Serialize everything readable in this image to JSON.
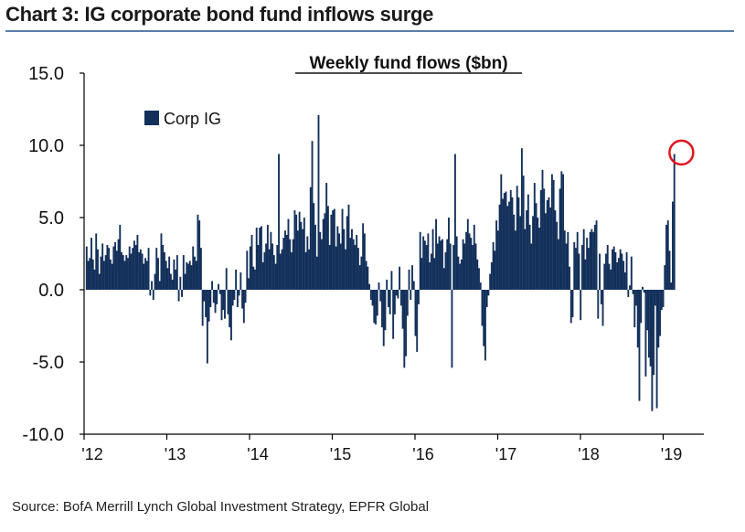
{
  "header": {
    "title": "Chart 3: IG corporate bond fund inflows surge"
  },
  "footer": {
    "source": "Source:  BofA Merrill Lynch Global Investment Strategy, EPFR Global"
  },
  "colors": {
    "bar": "#13305a",
    "highlight": "#e0141c",
    "axis": "#000000",
    "title_rule": "#5a7fa8"
  },
  "chart_data": {
    "type": "bar",
    "title": "Weekly fund flows ($bn)",
    "xlabel": "",
    "ylabel": "",
    "ylim": [
      -10,
      15
    ],
    "grid": false,
    "legend": [
      "Corp IG"
    ],
    "legend_position": "top-left",
    "y_ticks": [
      15,
      10,
      5,
      0,
      -5,
      -10
    ],
    "y_tick_labels": [
      "15.0",
      "10.0",
      "5.0",
      "0.0",
      "-5.0",
      "-10.0"
    ],
    "x_ticks": [
      {
        "label": "'12",
        "t": 0.0
      },
      {
        "label": "'13",
        "t": 1.0
      },
      {
        "label": "'14",
        "t": 2.0
      },
      {
        "label": "'15",
        "t": 3.0
      },
      {
        "label": "'16",
        "t": 4.0
      },
      {
        "label": "'17",
        "t": 5.0
      },
      {
        "label": "'18",
        "t": 6.0
      },
      {
        "label": "'19",
        "t": 7.0
      }
    ],
    "x_range": [
      0,
      7.45
    ],
    "annotation": {
      "type": "circle",
      "label": "latest weekly inflow",
      "t": 7.22,
      "value": 9.5
    },
    "series": [
      {
        "name": "Corp IG",
        "t_start": 0.03,
        "t_step": 0.0192,
        "values": [
          3.0,
          2.0,
          2.2,
          3.6,
          2.1,
          1.4,
          3.9,
          2.8,
          1.1,
          2.3,
          3.2,
          2.0,
          2.4,
          3.1,
          2.9,
          2.1,
          1.8,
          3.0,
          3.3,
          2.7,
          3.5,
          4.5,
          2.6,
          2.4,
          2.0,
          2.4,
          2.2,
          3.0,
          2.5,
          2.9,
          3.4,
          3.1,
          3.8,
          2.6,
          2.8,
          2.5,
          1.8,
          2.2,
          2.0,
          2.9,
          -0.4,
          0.6,
          -0.7,
          1.1,
          2.9,
          2.2,
          0.6,
          3.9,
          3.1,
          2.6,
          2.0,
          1.5,
          2.3,
          1.1,
          0.7,
          2.1,
          1.4,
          2.4,
          -0.8,
          0.9,
          -0.5,
          2.4,
          1.1,
          1.9,
          1.8,
          2.0,
          1.7,
          3.0,
          2.3,
          2.0,
          5.2,
          4.8,
          2.9,
          -2.5,
          -0.8,
          -1.9,
          -5.1,
          -2.2,
          -1.2,
          0.6,
          -0.9,
          -1.6,
          -1.0,
          0.4,
          -0.3,
          -2.1,
          -1.4,
          -2.0,
          1.5,
          -1.7,
          -2.6,
          -3.5,
          -1.1,
          -0.7,
          1.4,
          -1.2,
          -0.4,
          1.2,
          -1.3,
          -2.3,
          -0.9,
          2.7,
          0.8,
          3.0,
          3.8,
          1.6,
          1.4,
          4.3,
          3.1,
          4.3,
          4.4,
          1.9,
          2.6,
          3.2,
          4.5,
          2.8,
          4.0,
          3.2,
          2.4,
          1.8,
          3.1,
          9.4,
          2.5,
          2.8,
          3.6,
          4.1,
          3.8,
          4.9,
          3.5,
          2.6,
          3.5,
          5.5,
          5.2,
          4.1,
          5.4,
          4.7,
          4.2,
          5.0,
          2.6,
          3.7,
          2.8,
          7.1,
          10.3,
          6.0,
          4.5,
          2.3,
          12.1,
          4.0,
          3.5,
          4.9,
          5.3,
          7.4,
          5.8,
          3.1,
          5.2,
          5.5,
          5.6,
          3.0,
          4.4,
          3.9,
          3.2,
          5.6,
          4.2,
          2.8,
          5.1,
          5.9,
          3.6,
          4.2,
          3.5,
          3.1,
          3.8,
          2.9,
          1.7,
          2.3,
          4.6,
          3.9,
          2.0,
          1.6,
          0.4,
          -0.7,
          -1.1,
          -2.3,
          -2.4,
          -1.8,
          0.5,
          -0.8,
          -2.6,
          -3.9,
          -2.8,
          0.7,
          -1.2,
          -1.7,
          1.3,
          -3.4,
          -1.7,
          -0.4,
          -0.6,
          1.6,
          -1.1,
          -2.7,
          -5.4,
          -4.6,
          -1.8,
          1.4,
          -0.7,
          1.7,
          0.6,
          -3.2,
          -4.3,
          -1.0,
          4.0,
          2.2,
          3.7,
          3.4,
          3.1,
          3.9,
          1.9,
          2.5,
          4.2,
          2.2,
          4.9,
          3.2,
          3.7,
          3.4,
          3.5,
          1.5,
          2.6,
          3.5,
          5.0,
          3.2,
          -5.4,
          3.1,
          9.4,
          3.7,
          2.3,
          1.8,
          2.1,
          3.5,
          3.2,
          4.0,
          4.9,
          3.9,
          3.6,
          3.1,
          4.5,
          3.2,
          2.1,
          1.5,
          0.5,
          -2.5,
          -3.9,
          -4.9,
          -1.2,
          -0.4,
          1.1,
          1.9,
          3.3,
          2.7,
          4.8,
          4.1,
          5.9,
          8.0,
          6.3,
          6.7,
          6.8,
          5.8,
          6.1,
          6.9,
          6.4,
          5.2,
          4.1,
          7.2,
          6.4,
          5.1,
          9.8,
          7.9,
          4.2,
          5.5,
          6.6,
          4.5,
          3.2,
          5.1,
          7.4,
          6.0,
          5.0,
          4.3,
          6.9,
          8.3,
          7.0,
          5.3,
          6.2,
          6.4,
          5.7,
          8.0,
          7.6,
          5.5,
          4.7,
          3.5,
          7.0,
          8.2,
          8.0,
          4.1,
          3.2,
          4.0,
          1.6,
          -2.3,
          -1.9,
          3.3,
          2.9,
          4.0,
          2.5,
          -2.1,
          3.1,
          4.2,
          2.1,
          3.6,
          2.9,
          4.0,
          4.2,
          4.0,
          4.5,
          4.8,
          -2.0,
          2.5,
          -1.0,
          -2.5,
          1.8,
          2.5,
          3.1,
          1.8,
          1.4,
          2.8,
          3.0,
          2.6,
          1.9,
          2.2,
          2.8,
          2.5,
          2.0,
          1.2,
          2.6,
          -0.5,
          0.3,
          2.3,
          -0.3,
          -2.6,
          -1.1,
          -4.0,
          -7.7,
          -2.3,
          0.2,
          -0.2,
          -6.0,
          -2.8,
          -4.7,
          -5.3,
          -8.4,
          -5.9,
          -1.1,
          -8.2,
          -4.0,
          -3.2,
          -1.4,
          -1.2,
          1.7,
          4.5,
          4.8,
          2.7,
          0.5,
          6.1,
          9.4
        ]
      }
    ]
  }
}
